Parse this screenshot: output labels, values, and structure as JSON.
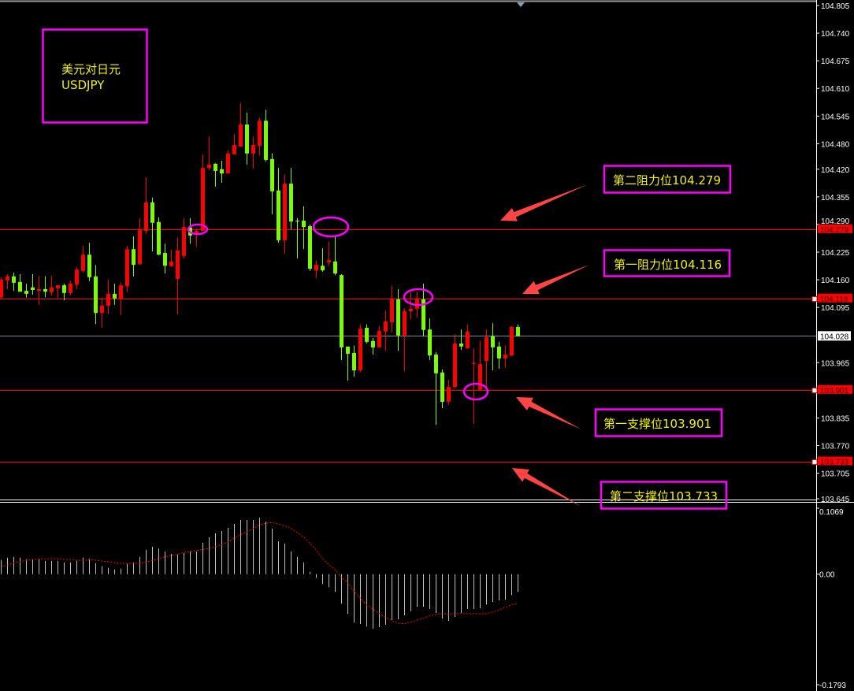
{
  "chart_data": [
    {
      "type": "candlestick",
      "symbol_label": "美元对日元",
      "symbol_code": "USDJPY",
      "ylim": [
        103.645,
        104.805
      ],
      "grid": false,
      "fields": [
        "open",
        "high",
        "low",
        "close"
      ],
      "candles": [
        [
          104.119,
          104.166,
          104.114,
          104.16
        ],
        [
          104.158,
          104.173,
          104.138,
          104.168
        ],
        [
          104.168,
          104.177,
          104.134,
          104.153
        ],
        [
          104.155,
          104.173,
          104.132,
          104.132
        ],
        [
          104.134,
          104.151,
          104.118,
          104.127
        ],
        [
          104.142,
          104.173,
          104.125,
          104.136
        ],
        [
          104.134,
          104.169,
          104.101,
          104.138
        ],
        [
          104.138,
          104.168,
          104.119,
          104.132
        ],
        [
          104.131,
          104.169,
          104.123,
          104.142
        ],
        [
          104.14,
          104.149,
          104.118,
          104.147
        ],
        [
          104.147,
          104.151,
          104.112,
          104.129
        ],
        [
          104.129,
          104.158,
          104.123,
          104.151
        ],
        [
          104.149,
          104.19,
          104.138,
          104.184
        ],
        [
          104.181,
          104.24,
          104.177,
          104.219
        ],
        [
          104.219,
          104.247,
          104.157,
          104.166
        ],
        [
          104.168,
          104.195,
          104.056,
          104.082
        ],
        [
          104.082,
          104.118,
          104.047,
          104.099
        ],
        [
          104.099,
          104.16,
          104.079,
          104.127
        ],
        [
          104.127,
          104.151,
          104.101,
          104.116
        ],
        [
          104.116,
          104.153,
          104.077,
          104.147
        ],
        [
          104.145,
          104.24,
          104.131,
          104.232
        ],
        [
          104.232,
          104.262,
          104.168,
          104.195
        ],
        [
          104.197,
          104.305,
          104.195,
          104.277
        ],
        [
          104.275,
          104.401,
          104.268,
          104.342
        ],
        [
          104.342,
          104.353,
          104.227,
          104.294
        ],
        [
          104.296,
          104.307,
          104.218,
          104.219
        ],
        [
          104.223,
          104.245,
          104.175,
          104.193
        ],
        [
          104.192,
          104.231,
          104.19,
          104.203
        ],
        [
          104.162,
          104.26,
          104.079,
          104.229
        ],
        [
          104.216,
          104.305,
          104.21,
          104.284
        ],
        [
          104.283,
          104.305,
          104.245,
          104.264
        ],
        [
          104.266,
          104.281,
          104.238,
          104.275
        ],
        [
          104.275,
          104.455,
          104.275,
          104.423
        ],
        [
          104.423,
          104.497,
          104.418,
          104.431
        ],
        [
          104.433,
          104.434,
          104.379,
          104.416
        ],
        [
          104.42,
          104.44,
          104.388,
          104.41
        ],
        [
          104.41,
          104.464,
          104.41,
          104.457
        ],
        [
          104.455,
          104.503,
          104.455,
          104.477
        ],
        [
          104.473,
          104.575,
          104.473,
          104.525
        ],
        [
          104.525,
          104.553,
          104.431,
          104.457
        ],
        [
          104.457,
          104.497,
          104.421,
          104.477
        ],
        [
          104.475,
          104.542,
          104.453,
          104.534
        ],
        [
          104.534,
          104.56,
          104.438,
          104.442
        ],
        [
          104.444,
          104.457,
          104.314,
          104.368
        ],
        [
          104.37,
          104.423,
          104.247,
          104.253
        ],
        [
          104.253,
          104.407,
          104.221,
          104.386
        ],
        [
          104.386,
          104.423,
          104.279,
          104.297
        ],
        [
          104.299,
          104.305,
          104.21,
          104.297
        ],
        [
          104.299,
          104.333,
          104.232,
          104.284
        ],
        [
          104.286,
          104.29,
          104.181,
          104.186
        ],
        [
          104.182,
          104.205,
          104.164,
          104.195
        ],
        [
          104.193,
          104.234,
          104.179,
          104.182
        ],
        [
          104.201,
          104.249,
          104.192,
          104.206
        ],
        [
          104.203,
          104.262,
          104.171,
          104.175
        ],
        [
          104.171,
          104.173,
          103.971,
          104.001
        ],
        [
          104.003,
          104.003,
          103.923,
          103.986
        ],
        [
          103.988,
          104.005,
          103.932,
          103.947
        ],
        [
          103.947,
          104.055,
          103.942,
          104.045
        ],
        [
          104.047,
          104.055,
          104.01,
          104.014
        ],
        [
          104.016,
          104.023,
          103.984,
          104.001
        ],
        [
          104.001,
          104.051,
          104.001,
          104.04
        ],
        [
          104.038,
          104.088,
          103.993,
          104.062
        ],
        [
          104.06,
          104.145,
          104.036,
          104.116
        ],
        [
          104.114,
          104.138,
          103.993,
          104.029
        ],
        [
          104.029,
          104.093,
          103.945,
          104.086
        ],
        [
          104.086,
          104.131,
          104.066,
          104.092
        ],
        [
          104.092,
          104.131,
          104.071,
          104.116
        ],
        [
          104.114,
          104.151,
          104.027,
          104.042
        ],
        [
          104.043,
          104.069,
          103.971,
          103.982
        ],
        [
          103.984,
          103.99,
          103.819,
          103.94
        ],
        [
          103.942,
          103.949,
          103.858,
          103.873
        ],
        [
          103.873,
          103.925,
          103.866,
          103.908
        ],
        [
          103.908,
          104.032,
          103.905,
          104.01
        ],
        [
          104.01,
          104.043,
          103.995,
          104.003
        ],
        [
          103.999,
          104.055,
          103.997,
          104.038
        ],
        [
          103.962,
          103.999,
          103.821,
          103.964
        ],
        [
          103.901,
          104.016,
          103.901,
          103.962
        ],
        [
          103.969,
          104.043,
          103.908,
          104.025
        ],
        [
          104.027,
          104.058,
          103.947,
          104.001
        ],
        [
          104.003,
          104.014,
          103.951,
          103.975
        ],
        [
          103.975,
          104.005,
          103.953,
          103.984
        ],
        [
          103.982,
          104.051,
          103.98,
          104.049
        ],
        [
          104.049,
          104.055,
          104.027,
          104.027
        ]
      ],
      "up_color": "#ff0000",
      "down_color": "#7cfc00",
      "y_ticks": [
        "104.805",
        "104.740",
        "104.675",
        "104.610",
        "104.545",
        "104.480",
        "104.420",
        "104.355",
        "104.290",
        "104.225",
        "104.160",
        "104.095",
        "103.965",
        "103.835",
        "103.770",
        "103.705",
        "103.645"
      ],
      "current_price": "104.028",
      "levels": [
        {
          "price": "104.279",
          "label": "第二阻力位104.279"
        },
        {
          "price": "104.116",
          "label": "第一阻力位104.116"
        },
        {
          "price": "103.901",
          "label": "第一支撑位103.901"
        },
        {
          "price": "103.733",
          "label": "第二支撑位103.733"
        }
      ],
      "level_color": "#ff0000",
      "annotation_color": "#ff00ff",
      "text_color": "#f2f200",
      "arrow_color": "#ff4444"
    },
    {
      "type": "bar+line",
      "ylim": [
        -0.1793,
        0.1069
      ],
      "y_ticks": [
        "0.1069",
        "0.00",
        "-0.1793"
      ],
      "histogram": [
        0.0229,
        0.0267,
        0.0279,
        0.0267,
        0.0241,
        0.0241,
        0.0241,
        0.0216,
        0.0216,
        0.0216,
        0.0191,
        0.0191,
        0.0216,
        0.0267,
        0.0254,
        0.0178,
        0.0127,
        0.0102,
        0.0076,
        0.0089,
        0.0165,
        0.0191,
        0.0279,
        0.0394,
        0.0445,
        0.0419,
        0.0368,
        0.033,
        0.0318,
        0.0343,
        0.0368,
        0.0368,
        0.0508,
        0.0597,
        0.066,
        0.0699,
        0.0749,
        0.0813,
        0.0876,
        0.0876,
        0.0876,
        0.0914,
        0.0851,
        0.0737,
        0.0533,
        0.0495,
        0.0368,
        0.0279,
        0.0191,
        0.0038,
        -0.006,
        -0.0161,
        -0.0212,
        -0.0288,
        -0.0478,
        -0.0643,
        -0.0783,
        -0.0809,
        -0.0847,
        -0.0885,
        -0.0859,
        -0.0821,
        -0.0745,
        -0.0732,
        -0.0669,
        -0.0605,
        -0.0529,
        -0.0529,
        -0.0567,
        -0.0631,
        -0.072,
        -0.0758,
        -0.0694,
        -0.0631,
        -0.0567,
        -0.0567,
        -0.0555,
        -0.0491,
        -0.0453,
        -0.0428,
        -0.0415,
        -0.0339,
        -0.0288
      ],
      "signal": [
        0.0127,
        0.014,
        0.0186,
        0.0203,
        0.0224,
        0.0237,
        0.0245,
        0.025,
        0.025,
        0.0245,
        0.0237,
        0.0237,
        0.0224,
        0.0224,
        0.0233,
        0.0224,
        0.0212,
        0.0203,
        0.0186,
        0.0174,
        0.0174,
        0.0174,
        0.0178,
        0.0199,
        0.022,
        0.025,
        0.0284,
        0.0301,
        0.0322,
        0.0352,
        0.0368,
        0.0381,
        0.0398,
        0.0415,
        0.0445,
        0.0483,
        0.0521,
        0.0584,
        0.0639,
        0.0686,
        0.0741,
        0.0796,
        0.0826,
        0.0834,
        0.0813,
        0.0783,
        0.0737,
        0.0673,
        0.0601,
        0.0495,
        0.039,
        0.025,
        0.0157,
        0.0072,
        -0.0055,
        -0.014,
        -0.0279,
        -0.0394,
        -0.0499,
        -0.0572,
        -0.0639,
        -0.0703,
        -0.0753,
        -0.08,
        -0.0804,
        -0.0779,
        -0.0745,
        -0.0715,
        -0.0677,
        -0.0652,
        -0.0639,
        -0.0648,
        -0.0639,
        -0.0639,
        -0.0639,
        -0.0639,
        -0.0639,
        -0.0639,
        -0.0618,
        -0.058,
        -0.0538,
        -0.0499,
        -0.0474
      ],
      "histogram_color": "#c0c0c0",
      "signal_color": "#ff0000"
    }
  ]
}
